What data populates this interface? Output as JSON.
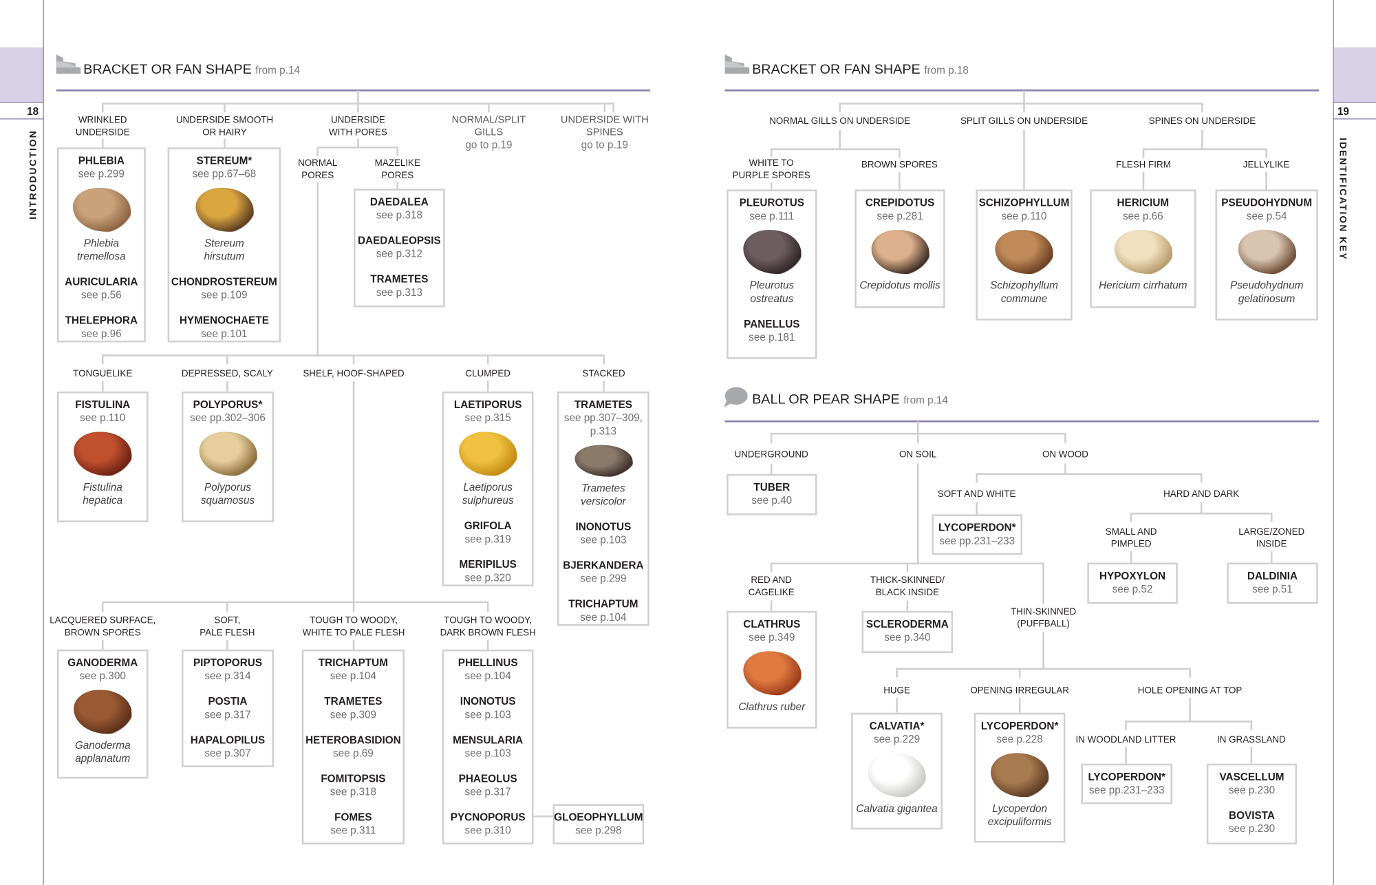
{
  "pages": {
    "left_number": "18",
    "left_section": "INTRODUCTION",
    "right_number": "19",
    "right_section": "IDENTIFICATION KEY",
    "accent_color": "#8a7aa8",
    "tab_color": "#d7d0e6"
  },
  "sections": [
    {
      "icon": "bracket-fan-icon",
      "title": "BRACKET OR FAN SHAPE",
      "from": "from p.14"
    },
    {
      "icon": "bracket-fan-icon",
      "title": "BRACKET OR FAN SHAPE",
      "from": "from p.18"
    },
    {
      "icon": "ball-pear-icon",
      "title": "BALL OR PEAR SHAPE",
      "from": "from p.14"
    }
  ],
  "labels": [
    {
      "lines": [
        "WRINKLED",
        "UNDERSIDE"
      ]
    },
    {
      "lines": [
        "UNDERSIDE SMOOTH",
        "OR HAIRY"
      ]
    },
    {
      "lines": [
        "UNDERSIDE",
        "WITH PORES"
      ]
    },
    {
      "lines": [
        "NORMAL/SPLIT",
        "GILLS"
      ],
      "goto": "go to p.19"
    },
    {
      "lines": [
        "UNDERSIDE WITH",
        "SPINES"
      ],
      "goto": "go to p.19"
    },
    {
      "lines": [
        "NORMAL",
        "PORES"
      ]
    },
    {
      "lines": [
        "MAZELIKE",
        "PORES"
      ]
    },
    {
      "lines": [
        "TONGUELIKE"
      ]
    },
    {
      "lines": [
        "DEPRESSED, SCALY"
      ]
    },
    {
      "lines": [
        "SHELF, HOOF-SHAPED"
      ]
    },
    {
      "lines": [
        "CLUMPED"
      ]
    },
    {
      "lines": [
        "STACKED"
      ]
    },
    {
      "lines": [
        "LACQUERED SURFACE,",
        "BROWN SPORES"
      ]
    },
    {
      "lines": [
        "SOFT,",
        "PALE FLESH"
      ]
    },
    {
      "lines": [
        "TOUGH TO WOODY,",
        "WHITE TO PALE FLESH"
      ]
    },
    {
      "lines": [
        "TOUGH TO WOODY,",
        "DARK BROWN FLESH"
      ]
    },
    {
      "lines": [
        "NORMAL GILLS ON UNDERSIDE"
      ]
    },
    {
      "lines": [
        "SPLIT GILLS ON UNDERSIDE"
      ]
    },
    {
      "lines": [
        "SPINES ON UNDERSIDE"
      ]
    },
    {
      "lines": [
        "WHITE TO",
        "PURPLE SPORES"
      ]
    },
    {
      "lines": [
        "BROWN SPORES"
      ]
    },
    {
      "lines": [
        "FLESH FIRM"
      ]
    },
    {
      "lines": [
        "JELLYLIKE"
      ]
    },
    {
      "lines": [
        "UNDERGROUND"
      ]
    },
    {
      "lines": [
        "ON SOIL"
      ]
    },
    {
      "lines": [
        "ON WOOD"
      ]
    },
    {
      "lines": [
        "SOFT AND WHITE"
      ]
    },
    {
      "lines": [
        "HARD AND DARK"
      ]
    },
    {
      "lines": [
        "SMALL AND",
        "PIMPLED"
      ]
    },
    {
      "lines": [
        "LARGE/ZONED",
        "INSIDE"
      ]
    },
    {
      "lines": [
        "RED AND",
        "CAGELIKE"
      ]
    },
    {
      "lines": [
        "THICK-SKINNED/",
        "BLACK INSIDE"
      ]
    },
    {
      "lines": [
        "THIN-SKINNED",
        "(PUFFBALL)"
      ]
    },
    {
      "lines": [
        "HUGE"
      ]
    },
    {
      "lines": [
        "OPENING IRREGULAR"
      ]
    },
    {
      "lines": [
        "HOLE OPENING AT TOP"
      ]
    },
    {
      "lines": [
        "IN WOODLAND LITTER"
      ]
    },
    {
      "lines": [
        "IN GRASSLAND"
      ]
    }
  ],
  "boxes": [
    {
      "genera": [
        {
          "name": "PHLEBIA",
          "ref": "see p.299",
          "photo": [
            "#c9a27a",
            "#8a6240"
          ],
          "species": "Phlebia\ntremellosa"
        },
        {
          "name": "AURICULARIA",
          "ref": "see p.56"
        },
        {
          "name": "THELEPHORA",
          "ref": "see p.96"
        }
      ]
    },
    {
      "genera": [
        {
          "name": "STEREUM*",
          "ref": "see pp.67–68",
          "photo": [
            "#d9a640",
            "#5a3a22"
          ],
          "species": "Stereum\nhirsutum"
        },
        {
          "name": "CHONDROSTEREUM",
          "ref": "see p.109"
        },
        {
          "name": "HYMENOCHAETE",
          "ref": "see p.101"
        }
      ]
    },
    {
      "genera": [
        {
          "name": "DAEDALEA",
          "ref": "see p.318"
        },
        {
          "name": "DAEDALEOPSIS",
          "ref": "see p.312"
        },
        {
          "name": "TRAMETES",
          "ref": "see p.313"
        }
      ]
    },
    {
      "genera": [
        {
          "name": "FISTULINA",
          "ref": "see p.110",
          "photo": [
            "#c0502e",
            "#6a2014"
          ],
          "species": "Fistulina\nhepatica"
        }
      ]
    },
    {
      "genera": [
        {
          "name": "POLYPORUS*",
          "ref": "see pp.302–306",
          "photo": [
            "#e6cf9c",
            "#8a6a3a"
          ],
          "species": "Polyporus\nsquamosus"
        }
      ]
    },
    {
      "genera": [
        {
          "name": "LAETIPORUS",
          "ref": "see p.315",
          "photo": [
            "#f0c040",
            "#c08a10"
          ],
          "species": "Laetiporus\nsulphureus"
        },
        {
          "name": "GRIFOLA",
          "ref": "see p.319"
        },
        {
          "name": "MERIPILUS",
          "ref": "see p.320"
        }
      ]
    },
    {
      "genera": [
        {
          "name": "TRAMETES",
          "ref": "see pp.307–309,\np.313",
          "photo": [
            "#8a7a6a",
            "#3a2e28"
          ],
          "species": "Trametes\nversicolor"
        },
        {
          "name": "INONOTUS",
          "ref": "see p.103"
        },
        {
          "name": "BJERKANDERA",
          "ref": "see p.299"
        },
        {
          "name": "TRICHAPTUM",
          "ref": "see p.104"
        }
      ]
    },
    {
      "genera": [
        {
          "name": "GANODERMA",
          "ref": "see p.300",
          "photo": [
            "#9a5a34",
            "#5a2e18"
          ],
          "species": "Ganoderma\napplanatum"
        }
      ]
    },
    {
      "genera": [
        {
          "name": "PIPTOPORUS",
          "ref": "see p.314"
        },
        {
          "name": "POSTIA",
          "ref": "see p.317"
        },
        {
          "name": "HAPALOPILUS",
          "ref": "see p.307"
        }
      ]
    },
    {
      "genera": [
        {
          "name": "TRICHAPTUM",
          "ref": "see p.104"
        },
        {
          "name": "TRAMETES",
          "ref": "see p.309"
        },
        {
          "name": "HETEROBASIDION",
          "ref": "see p.69"
        },
        {
          "name": "FOMITOPSIS",
          "ref": "see p.318"
        },
        {
          "name": "FOMES",
          "ref": "see p.311"
        }
      ]
    },
    {
      "genera": [
        {
          "name": "PHELLINUS",
          "ref": "see p.104"
        },
        {
          "name": "INONOTUS",
          "ref": "see p.103"
        },
        {
          "name": "MENSULARIA",
          "ref": "see p.103"
        },
        {
          "name": "PHAEOLUS",
          "ref": "see p.317"
        },
        {
          "name": "PYCNOPORUS",
          "ref": "see p.310"
        }
      ]
    },
    {
      "genera": [
        {
          "name": "GLOEOPHYLLUM",
          "ref": "see p.298"
        }
      ]
    },
    {
      "genera": [
        {
          "name": "PLEUROTUS",
          "ref": "see p.111",
          "photo": [
            "#6e5e62",
            "#2e2426"
          ],
          "species": "Pleurotus\nostreatus"
        },
        {
          "name": "PANELLUS",
          "ref": "see p.181"
        }
      ]
    },
    {
      "genera": [
        {
          "name": "CREPIDOTUS",
          "ref": "see p.281",
          "photo": [
            "#dcb08c",
            "#3a2a22"
          ],
          "species": "Crepidotus mollis"
        }
      ]
    },
    {
      "genera": [
        {
          "name": "SCHIZOPHYLLUM",
          "ref": "see p.110",
          "photo": [
            "#c08a5a",
            "#6a3e22"
          ],
          "species": "Schizophyllum\ncommune"
        }
      ]
    },
    {
      "genera": [
        {
          "name": "HERICIUM",
          "ref": "see p.66",
          "photo": [
            "#f0e0c0",
            "#b89a6a"
          ],
          "species": "Hericium cirrhatum"
        }
      ]
    },
    {
      "genera": [
        {
          "name": "PSEUDOHYDNUM",
          "ref": "see p.54",
          "photo": [
            "#d8c4b0",
            "#6a4a32"
          ],
          "species": "Pseudohydnum\ngelatinosum"
        }
      ]
    },
    {
      "genera": [
        {
          "name": "TUBER",
          "ref": "see p.40"
        }
      ]
    },
    {
      "genera": [
        {
          "name": "LYCOPERDON*",
          "ref": "see pp.231–233"
        }
      ]
    },
    {
      "genera": [
        {
          "name": "HYPOXYLON",
          "ref": "see p.52"
        }
      ]
    },
    {
      "genera": [
        {
          "name": "DALDINIA",
          "ref": "see p.51"
        }
      ]
    },
    {
      "genera": [
        {
          "name": "CLATHRUS",
          "ref": "see p.349",
          "photo": [
            "#e07a40",
            "#9a3a1a"
          ],
          "species": "Clathrus ruber"
        }
      ]
    },
    {
      "genera": [
        {
          "name": "SCLERODERMA",
          "ref": "see p.340"
        }
      ]
    },
    {
      "genera": [
        {
          "name": "CALVATIA*",
          "ref": "see p.229",
          "photo": [
            "#ffffff",
            "#c8c8c4"
          ],
          "species": "Calvatia gigantea"
        }
      ]
    },
    {
      "genera": [
        {
          "name": "LYCOPERDON*",
          "ref": "see p.228",
          "photo": [
            "#a87a50",
            "#5a3a22"
          ],
          "species": "Lycoperdon\nexcipuliformis"
        }
      ]
    },
    {
      "genera": [
        {
          "name": "LYCOPERDON*",
          "ref": "see pp.231–233"
        }
      ]
    },
    {
      "genera": [
        {
          "name": "VASCELLUM",
          "ref": "see p.230"
        },
        {
          "name": "BOVISTA",
          "ref": "see p.230"
        }
      ]
    }
  ]
}
